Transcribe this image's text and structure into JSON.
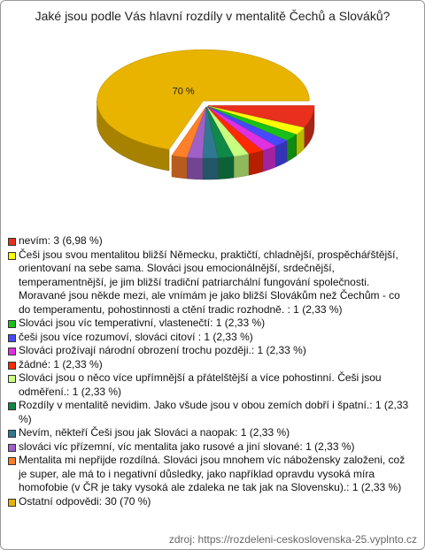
{
  "chart_data": {
    "type": "pie",
    "title": "Jaké jsou podle Vás hlavní rozdíly v mentalitě Čechů a Slováků?",
    "categories": [
      "nevím: 3 (6,98 %)",
      "Češi jsou svou mentalitou bližší Německu, praktičtí, chladnější, prospěcháŕštější, orientovaní na sebe sama.  Slováci jsou emocionálnější, srdečnější, temperamentnější, je jim bližší tradiční patriarchální fungování společnosti. Moravané jsou někde mezi, ale vnímám je jako bližší Slovákům než Čechům - co do temperamentu, pohostinnosti a ctění tradic rozhodně. : 1 (2,33 %)",
      "Slováci jsou víc temperativní, vlastenečtí: 1 (2,33 %)",
      "češi jsou více rozumoví, slováci citoví : 1 (2,33 %)",
      "Slováci prožívají národní obrození trochu později.: 1 (2,33 %)",
      "žádné: 1 (2,33 %)",
      "Slováci jsou o něco více upřímnější a přátelštější a více pohostinní. Češi jsou odměření.: 1 (2,33 %)",
      "Rozdíly v mentalitě nevidim. Jako všude jsou v obou zemích dobří i špatní.: 1 (2,33 %)",
      "Nevím, někteří Češi jsou jak Slováci a naopak: 1 (2,33 %)",
      "slováci víc přízemní, víc mentalita jako rusové a jiní slované: 1 (2,33 %)",
      "Mentalita mi nepřijde rozdílná. Slováci jsou mnohem víc nábožensky založeni, což je super, ale má to i negativní důsledky, jako například opravdu vysoká míra homofobie (v ČR je taky vysoká ale zdaleka ne tak jak na Slovensku).: 1 (2,33 %)",
      "Ostatní odpovědi: 30 (70 %)"
    ],
    "values": [
      6.98,
      2.33,
      2.33,
      2.33,
      2.33,
      2.33,
      2.33,
      2.33,
      2.33,
      2.33,
      2.33,
      70
    ],
    "value_labels": [
      null,
      null,
      null,
      null,
      null,
      null,
      null,
      null,
      null,
      null,
      null,
      "70 %"
    ],
    "colors": [
      "#e8301c",
      "#ffff00",
      "#18c018",
      "#4848ff",
      "#e030e0",
      "#ff2a00",
      "#c8ff80",
      "#108848",
      "#2f7890",
      "#a060c8",
      "#ff8028",
      "#e8b400"
    ],
    "source": "zdroj: https://rozdeleni-ceskoslovenska-25.vyplnto.cz"
  }
}
